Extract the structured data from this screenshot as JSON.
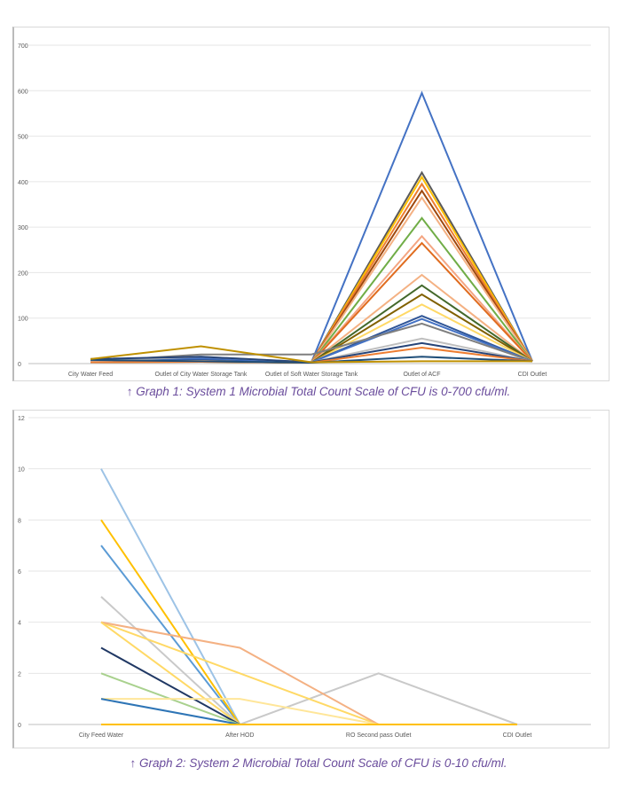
{
  "chart_data": [
    {
      "type": "line",
      "title": "",
      "categories": [
        "City Water Feed",
        "Outlet of City Water Storage Tank",
        "Outlet of Soft Water Storage Tank",
        "Outlet of ACF",
        "CDI Outlet"
      ],
      "ylim": [
        0,
        700
      ],
      "yticks": [
        0,
        100,
        200,
        300,
        400,
        500,
        600,
        700
      ],
      "grid": true,
      "series": [
        {
          "color": "#4472c4",
          "values": [
            5,
            8,
            3,
            595,
            5
          ]
        },
        {
          "color": "#595959",
          "values": [
            8,
            10,
            3,
            420,
            5
          ]
        },
        {
          "color": "#ffc000",
          "values": [
            6,
            6,
            2,
            410,
            5
          ]
        },
        {
          "color": "#ed7d31",
          "values": [
            5,
            5,
            3,
            395,
            5
          ]
        },
        {
          "color": "#9e480e",
          "values": [
            4,
            6,
            2,
            380,
            5
          ]
        },
        {
          "color": "#f4b183",
          "values": [
            6,
            8,
            2,
            365,
            5
          ]
        },
        {
          "color": "#70ad47",
          "values": [
            3,
            5,
            2,
            320,
            5
          ]
        },
        {
          "color": "#f4a582",
          "values": [
            5,
            4,
            2,
            280,
            5
          ]
        },
        {
          "color": "#e06c1f",
          "values": [
            4,
            5,
            2,
            265,
            5
          ]
        },
        {
          "color": "#f4b183",
          "values": [
            5,
            6,
            3,
            195,
            5
          ]
        },
        {
          "color": "#43682b",
          "values": [
            4,
            4,
            2,
            172,
            5
          ]
        },
        {
          "color": "#806000",
          "values": [
            3,
            4,
            2,
            152,
            5
          ]
        },
        {
          "color": "#ffd966",
          "values": [
            4,
            5,
            2,
            130,
            5
          ]
        },
        {
          "color": "#2f5597",
          "values": [
            6,
            10,
            3,
            105,
            5
          ]
        },
        {
          "color": "#4472c4",
          "values": [
            8,
            12,
            3,
            98,
            5
          ]
        },
        {
          "color": "#7f7f7f",
          "values": [
            5,
            20,
            20,
            88,
            5
          ]
        },
        {
          "color": "#bfbfbf",
          "values": [
            5,
            15,
            3,
            55,
            5
          ]
        },
        {
          "color": "#264478",
          "values": [
            10,
            15,
            3,
            45,
            5
          ]
        },
        {
          "color": "#ed7d31",
          "values": [
            3,
            4,
            2,
            35,
            5
          ]
        },
        {
          "color": "#1f4e79",
          "values": [
            8,
            5,
            2,
            15,
            5
          ]
        },
        {
          "color": "#bf9000",
          "values": [
            10,
            38,
            3,
            5,
            5
          ]
        }
      ]
    },
    {
      "type": "line",
      "title": "",
      "categories": [
        "City Feed Water",
        "After HOD",
        "RO Second pass Outlet",
        "CDI Outlet"
      ],
      "ylim": [
        0,
        12
      ],
      "yticks": [
        0,
        2,
        4,
        6,
        8,
        10,
        12
      ],
      "grid": true,
      "series": [
        {
          "color": "#9dc3e6",
          "values": [
            10,
            0,
            0,
            0
          ]
        },
        {
          "color": "#5b9bd5",
          "values": [
            7,
            0,
            0,
            0
          ]
        },
        {
          "color": "#ffc000",
          "values": [
            8,
            0,
            0,
            0
          ]
        },
        {
          "color": "#c9c9c9",
          "values": [
            5,
            0,
            2,
            0
          ]
        },
        {
          "color": "#ffd966",
          "values": [
            4,
            2,
            0,
            0
          ]
        },
        {
          "color": "#f4b183",
          "values": [
            4,
            3,
            0,
            0
          ]
        },
        {
          "color": "#ffd966",
          "values": [
            4,
            0,
            0,
            0
          ]
        },
        {
          "color": "#203864",
          "values": [
            3,
            0,
            0,
            0
          ]
        },
        {
          "color": "#a9d18e",
          "values": [
            2,
            0,
            0,
            0
          ]
        },
        {
          "color": "#ffe699",
          "values": [
            1,
            1,
            0,
            0
          ]
        },
        {
          "color": "#2e75b6",
          "values": [
            1,
            0,
            0,
            0
          ]
        },
        {
          "color": "#ffc000",
          "values": [
            0,
            0,
            0,
            0
          ]
        }
      ]
    }
  ],
  "captions": [
    "↑ Graph 1: System 1 Microbial Total Count Scale of CFU is 0-700 cfu/ml.",
    "↑ Graph 2: System 2 Microbial Total Count Scale of CFU is 0-10 cfu/ml."
  ]
}
